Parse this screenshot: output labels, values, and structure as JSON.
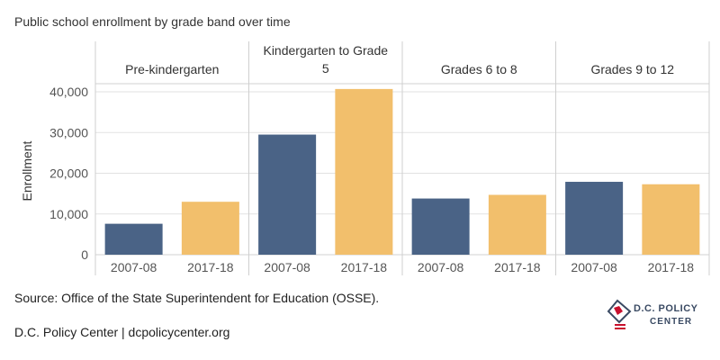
{
  "chart_data": {
    "type": "bar",
    "title": "Public school enrollment by grade band over time",
    "ylabel": "Enrollment",
    "xlabel": "",
    "ylim": [
      0,
      42000
    ],
    "yticks": [
      0,
      10000,
      20000,
      30000,
      40000
    ],
    "ytick_labels": [
      "0",
      "10,000",
      "20,000",
      "30,000",
      "40,000"
    ],
    "grid": true,
    "legend": "none",
    "panels": [
      {
        "label": "Pre-kindergarten",
        "categories": [
          "2007-08",
          "2017-18"
        ],
        "values": [
          7600,
          13000
        ]
      },
      {
        "label": "Kindergarten to Grade 5",
        "categories": [
          "2007-08",
          "2017-18"
        ],
        "values": [
          29500,
          40700
        ]
      },
      {
        "label": "Grades 6 to 8",
        "categories": [
          "2007-08",
          "2017-18"
        ],
        "values": [
          13800,
          14700
        ]
      },
      {
        "label": "Grades 9 to 12",
        "categories": [
          "2007-08",
          "2017-18"
        ],
        "values": [
          17900,
          17300
        ]
      }
    ],
    "colors": {
      "2007-08": "#4a6386",
      "2017-18": "#f2bf6c"
    }
  },
  "source": "Source: Office of the State Superintendent for Education (OSSE).",
  "footer": "D.C. Policy Center | dcpolicycenter.org",
  "logo": {
    "line1": "D.C. POLICY",
    "line2": "CENTER",
    "icon": "dc-map-icon"
  }
}
